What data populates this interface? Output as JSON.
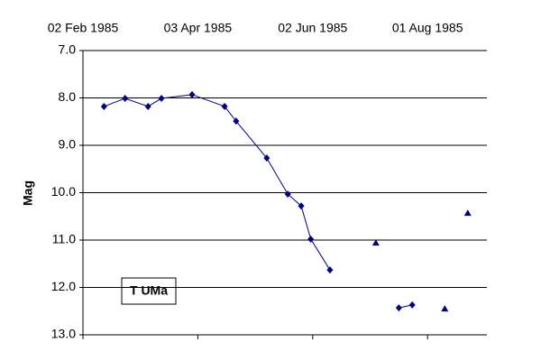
{
  "chart_data": {
    "type": "scatter",
    "annotation": "T UMa",
    "y_label": "Mag",
    "xlim": [
      "1985-02-02",
      "1985-09-01"
    ],
    "xticks": [
      {
        "value": "1985-02-02",
        "label": "02 Feb 1985"
      },
      {
        "value": "1985-04-03",
        "label": "03 Apr 1985"
      },
      {
        "value": "1985-06-02",
        "label": "02 Jun 1985"
      },
      {
        "value": "1985-08-01",
        "label": "01 Aug 1985"
      }
    ],
    "ylim": [
      7,
      13
    ],
    "invert_y": true,
    "yticks": [
      {
        "value": 7,
        "label": "7.0"
      },
      {
        "value": 8,
        "label": "8.0"
      },
      {
        "value": 9,
        "label": "9.0"
      },
      {
        "value": 10,
        "label": "10.0"
      },
      {
        "value": 11,
        "label": "11.0"
      },
      {
        "value": 12,
        "label": "12.0"
      },
      {
        "value": 13,
        "label": "13.0"
      }
    ],
    "grid": true,
    "series": [
      {
        "color": "#000080",
        "marker": "diamond",
        "line": true,
        "x": [
          "1985-02-13",
          "1985-02-24",
          "1985-03-08",
          "1985-03-15",
          "1985-03-31",
          "1985-04-17",
          "1985-04-23",
          "1985-05-09",
          "1985-05-20",
          "1985-05-27",
          "1985-06-01",
          "1985-06-11",
          null,
          "1985-07-17",
          "1985-07-24"
        ],
        "values": [
          8.18,
          8.01,
          8.18,
          8.01,
          7.93,
          8.18,
          8.49,
          9.27,
          10.03,
          10.28,
          10.98,
          11.63,
          null,
          12.43,
          12.37
        ]
      },
      {
        "color": "#000080",
        "marker": "triangle",
        "line": false,
        "x": [
          "1985-07-05",
          "1985-08-10",
          "1985-08-22"
        ],
        "values": [
          11.06,
          12.45,
          10.43
        ]
      }
    ]
  }
}
